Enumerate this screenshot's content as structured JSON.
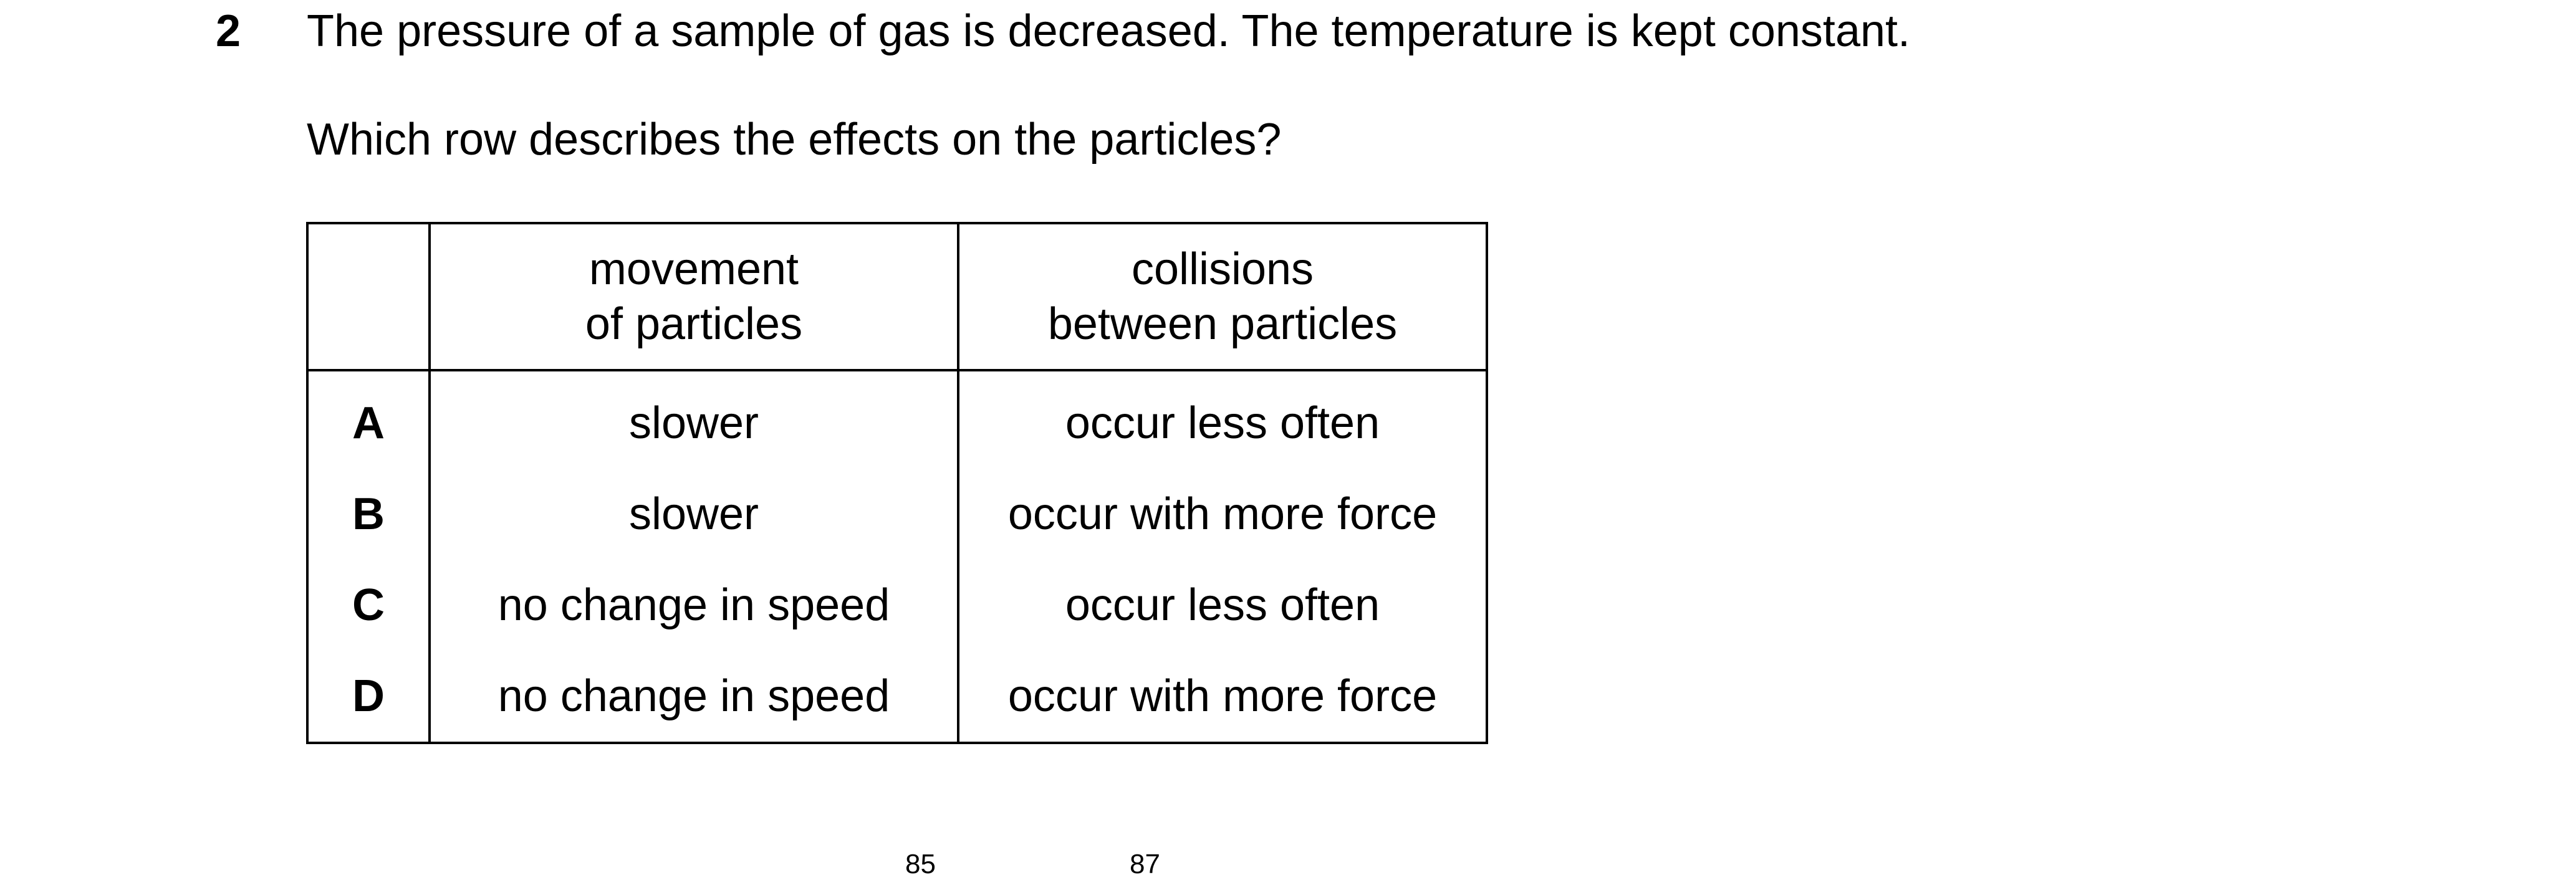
{
  "question": {
    "number": "2",
    "stem": "The pressure of a sample of gas is decreased. The temperature is kept constant.",
    "prompt": "Which row describes the effects on the particles?"
  },
  "table": {
    "headers": {
      "key": "",
      "movement": [
        "movement",
        "of particles"
      ],
      "collisions": [
        "collisions",
        "between particles"
      ]
    },
    "rows": [
      {
        "key": "A",
        "movement": "slower",
        "collisions": "occur less often"
      },
      {
        "key": "B",
        "movement": "slower",
        "collisions": "occur with more force"
      },
      {
        "key": "C",
        "movement": "no change in speed",
        "collisions": "occur less often"
      },
      {
        "key": "D",
        "movement": "no change in speed",
        "collisions": "occur with more force"
      }
    ]
  },
  "next_question_fragment": {
    "superscript_1": "85",
    "superscript_2": "87"
  }
}
